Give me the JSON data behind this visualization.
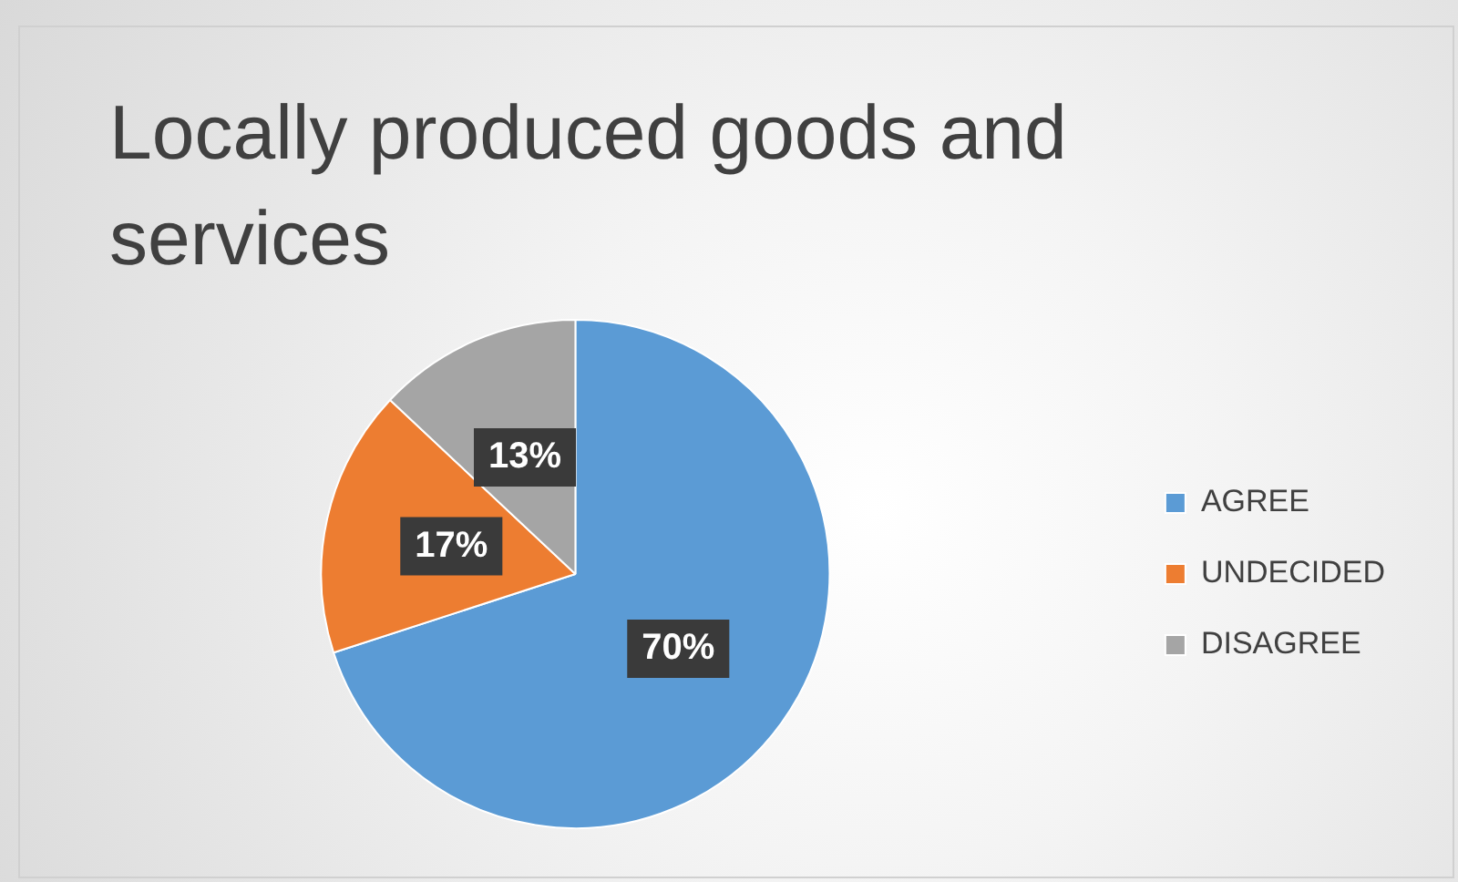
{
  "chart_data": {
    "type": "pie",
    "title": "Locally produced goods and services",
    "categories": [
      "AGREE",
      "UNDECIDED",
      "DISAGREE"
    ],
    "values": [
      70,
      17,
      13
    ],
    "colors": [
      "#5b9bd5",
      "#ed7d31",
      "#a5a5a5"
    ],
    "value_labels": [
      "70%",
      "17%",
      "13%"
    ],
    "legend": "right"
  }
}
